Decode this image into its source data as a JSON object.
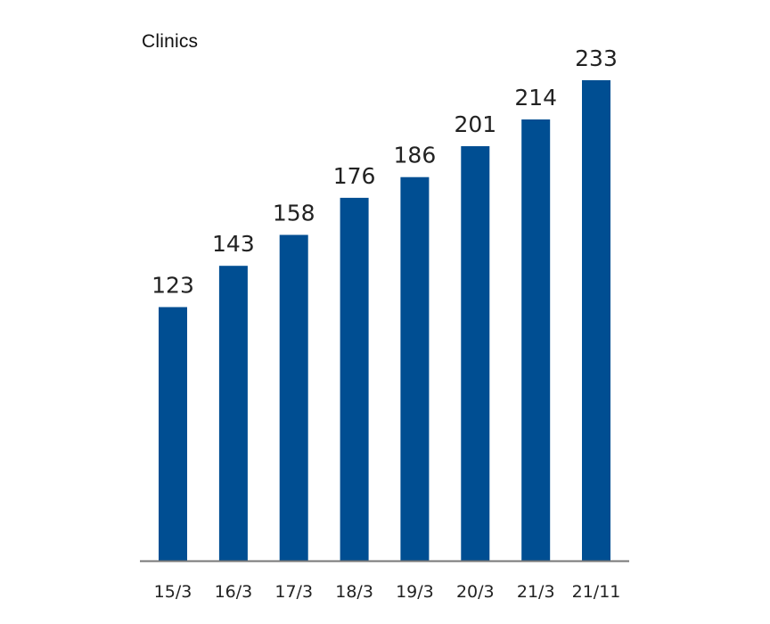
{
  "chart_data": {
    "type": "bar",
    "title": "Clinics",
    "categories": [
      "15/3",
      "16/3",
      "17/3",
      "18/3",
      "19/3",
      "20/3",
      "21/3",
      "21/11"
    ],
    "values": [
      123,
      143,
      158,
      176,
      186,
      201,
      214,
      233
    ],
    "xlabel": "",
    "ylabel": "",
    "ylim": [
      0,
      233
    ],
    "grid": false,
    "legend": "none",
    "data_labels": true,
    "bar_color": "#004e92",
    "axis_color": "#777777",
    "text_color": "#222222"
  }
}
